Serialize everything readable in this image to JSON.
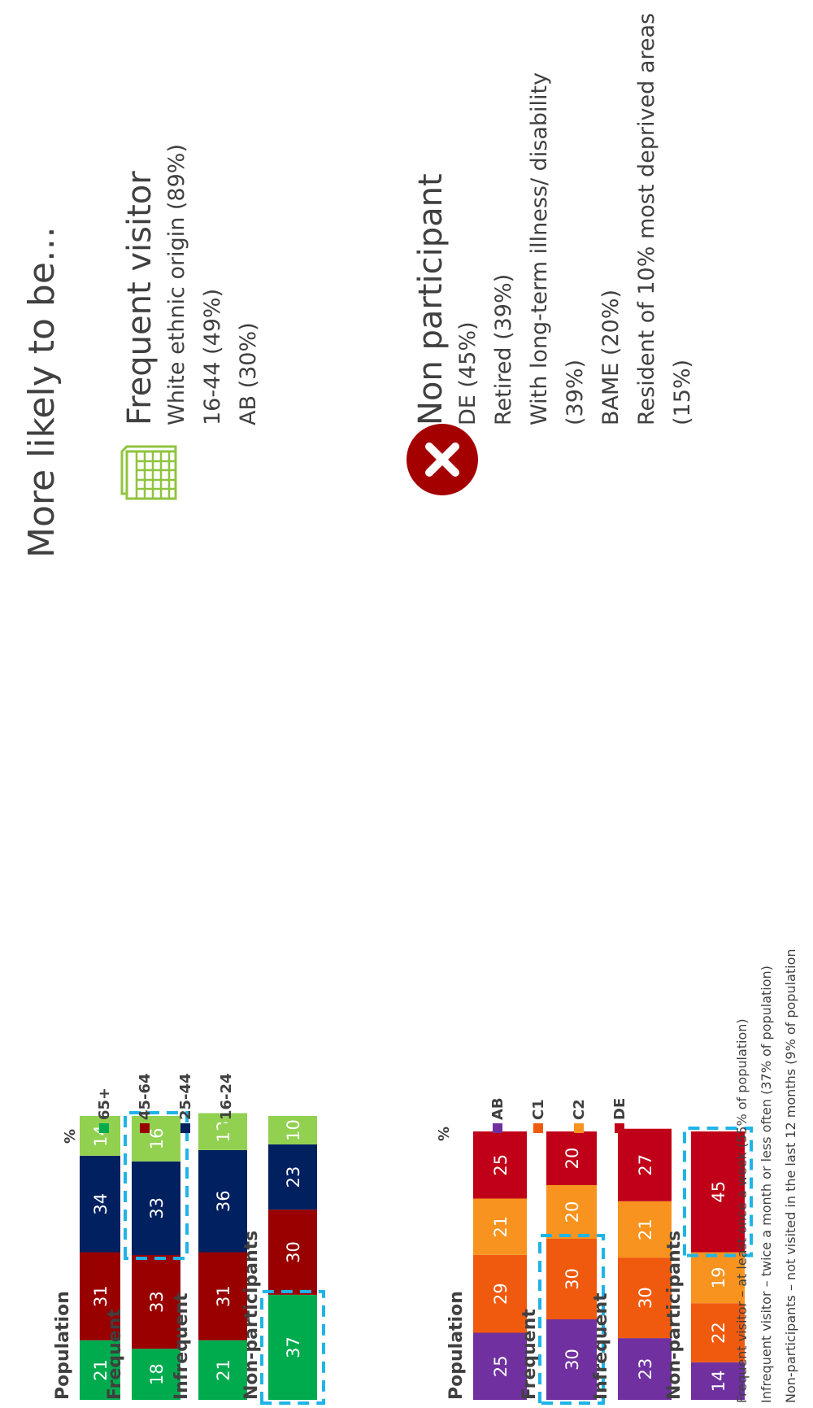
{
  "chart_data": [
    {
      "type": "bar",
      "stacked": true,
      "orientation": "horizontal",
      "unit_label": "%",
      "categories": [
        "Population",
        "Frequent",
        "Infrequent",
        "Non-participants"
      ],
      "series": [
        {
          "name": "65+",
          "color": "#00ab4e",
          "values": [
            21,
            18,
            21,
            37
          ]
        },
        {
          "name": "45-64",
          "color": "#990000",
          "values": [
            31,
            33,
            31,
            30
          ]
        },
        {
          "name": "25-44",
          "color": "#002060",
          "values": [
            34,
            33,
            36,
            23
          ]
        },
        {
          "name": "16-24",
          "color": "#92d050",
          "values": [
            14,
            16,
            13,
            10
          ]
        }
      ],
      "xlim": [
        0,
        100
      ],
      "grid": false,
      "legend_position": "right",
      "highlights": [
        {
          "category": "Frequent",
          "series": [
            "25-44",
            "16-24"
          ]
        },
        {
          "category": "Non-participants",
          "series": [
            "65+"
          ]
        }
      ]
    },
    {
      "type": "bar",
      "stacked": true,
      "orientation": "horizontal",
      "unit_label": "%",
      "categories": [
        "Population",
        "Frequent",
        "Infrequent",
        "Non-participants"
      ],
      "series": [
        {
          "name": "AB",
          "color": "#7030a0",
          "values": [
            25,
            30,
            23,
            14
          ]
        },
        {
          "name": "C1",
          "color": "#f05a0e",
          "values": [
            29,
            30,
            30,
            22
          ]
        },
        {
          "name": "C2",
          "color": "#f7931e",
          "values": [
            21,
            20,
            21,
            19
          ]
        },
        {
          "name": "DE",
          "color": "#c00018",
          "values": [
            25,
            20,
            27,
            45
          ]
        }
      ],
      "xlim": [
        0,
        100
      ],
      "grid": false,
      "legend_position": "right",
      "highlights": [
        {
          "category": "Frequent",
          "series": [
            "AB",
            "C1"
          ]
        },
        {
          "category": "Non-participants",
          "series": [
            "DE"
          ]
        }
      ]
    }
  ],
  "colors": {
    "highlight_border": "#1fb4e8",
    "text": "#404040",
    "frequent_icon": "#8fc43e",
    "non_participant_icon": "#a50000"
  },
  "right_panel": {
    "title": "More likely to be…",
    "frequent": {
      "icon": "calendar-icon",
      "heading": "Frequent visitor",
      "items": [
        "White ethnic origin (89%)",
        "16-44 (49%)",
        "AB (30%)"
      ]
    },
    "non_participant": {
      "icon": "cross-circle-icon",
      "heading": "Non participant",
      "items": [
        "DE (45%)",
        "Retired (39%)",
        "With long-term illness/ disability (39%)",
        "BAME (20%)",
        "Resident of 10% most deprived areas (15%)"
      ]
    }
  },
  "footnotes": [
    "Frequent visitor –  at least once a week (55% of population)",
    "Infrequent visitor – twice a month or less often (37% of population)",
    "Non-participants – not visited in the last 12 months (9% of population"
  ]
}
